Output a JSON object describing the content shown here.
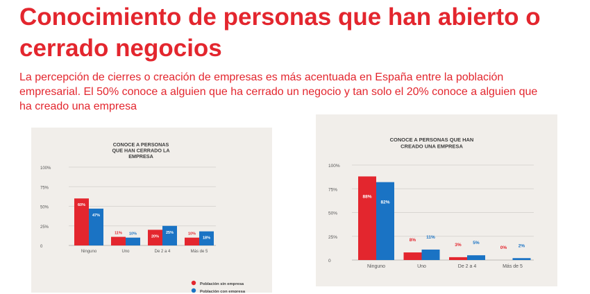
{
  "page": {
    "title": "Conocimiento de personas que han abierto o cerrado negocios",
    "subtitle": "La percepción de cierres o creación de empresas es más acentuada en España entre la población empresarial. El 50% conoce a alguien que ha cerrado un negocio y tan solo el 20% conoce a alguien que ha creado una empresa"
  },
  "colors": {
    "title": "#e3262e",
    "sin_empresa": "#e3262e",
    "con_empresa": "#1a73c4",
    "panel_bg": "#f1eeea"
  },
  "chart_data": [
    {
      "type": "bar",
      "title": "CONOCE A PERSONAS QUE HAN CERRADO LA EMPRESA",
      "title_lines": [
        "CONOCE A PERSONAS",
        "QUE HAN CERRADO LA",
        "EMPRESA"
      ],
      "categories": [
        "Ninguno",
        "Uno",
        "De 2 a 4",
        "Más de 5"
      ],
      "ylim": [
        0,
        100
      ],
      "yticks": [
        "0",
        "25%",
        "50%",
        "75%",
        "100%"
      ],
      "grid": true,
      "legend_position": "bottom-left",
      "series": [
        {
          "name": "Población sin empresa",
          "values": [
            60,
            11,
            20,
            10
          ],
          "labels": [
            "60%",
            "11%",
            "20%",
            "10%"
          ]
        },
        {
          "name": "Población con empresa",
          "values": [
            47,
            10,
            25,
            18
          ],
          "labels": [
            "47%",
            "10%",
            "25%",
            "18%"
          ]
        }
      ]
    },
    {
      "type": "bar",
      "title": "CONOCE A PERSONAS QUE HAN CREADO UNA EMPRESA",
      "title_lines": [
        "CONOCE A PERSONAS QUE HAN",
        "CREADO UNA EMPRESA"
      ],
      "categories": [
        "Ninguno",
        "Uno",
        "De 2 a 4",
        "Más de 5"
      ],
      "ylim": [
        0,
        100
      ],
      "yticks": [
        "0",
        "25%",
        "50%",
        "75%",
        "100%"
      ],
      "grid": true,
      "series": [
        {
          "name": "Población sin empresa",
          "values": [
            88,
            8,
            3,
            0
          ],
          "labels": [
            "88%",
            "8%",
            "3%",
            "0%"
          ]
        },
        {
          "name": "Población con empresa",
          "values": [
            82,
            11,
            5,
            2
          ],
          "labels": [
            "82%",
            "11%",
            "5%",
            "2%"
          ]
        }
      ]
    }
  ]
}
